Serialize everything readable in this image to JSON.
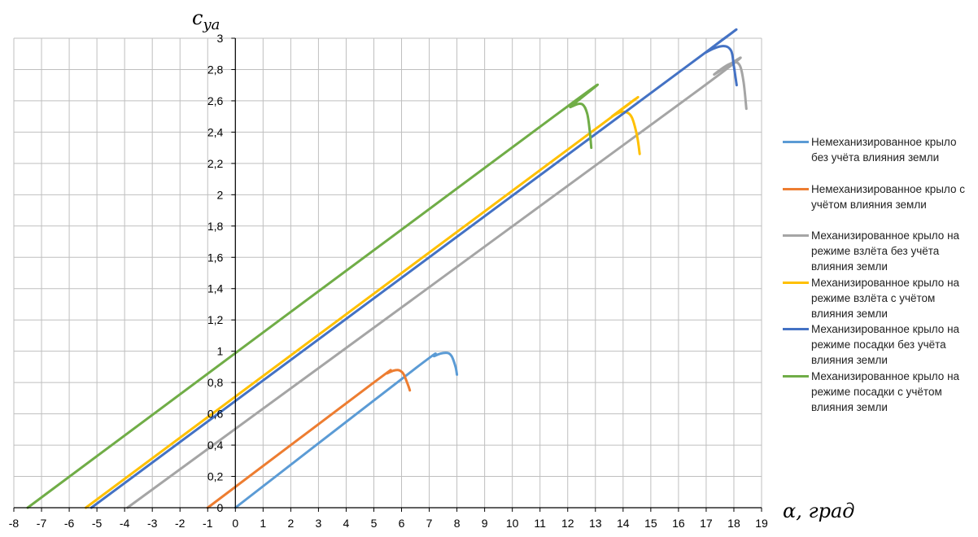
{
  "chart_data": {
    "type": "line",
    "xlabel": "α, град",
    "ylabel": "c_ya",
    "xlim": [
      -8,
      19
    ],
    "ylim": [
      0,
      3
    ],
    "x_ticks": [
      "-8",
      "-7",
      "-6",
      "-5",
      "-4",
      "-3",
      "-2",
      "-1",
      "0",
      "1",
      "2",
      "3",
      "4",
      "5",
      "6",
      "7",
      "8",
      "9",
      "10",
      "11",
      "12",
      "13",
      "14",
      "15",
      "16",
      "17",
      "18",
      "19"
    ],
    "y_ticks": [
      "0",
      "0,2",
      "0,4",
      "0,6",
      "0,8",
      "1",
      "1,2",
      "1,4",
      "1,6",
      "1,8",
      "2",
      "2,2",
      "2,4",
      "2,6",
      "2,8",
      "3"
    ],
    "grid": true,
    "legend_position": "right",
    "series": [
      {
        "name": "Немеханизированное крыло без учёта влияния земли",
        "color": "#5b9bd5",
        "points": [
          [
            0,
            0
          ],
          [
            6.5,
            0.89
          ],
          [
            7.2,
            0.97
          ],
          [
            7.6,
            0.99
          ],
          [
            7.8,
            0.97
          ],
          [
            7.95,
            0.9
          ],
          [
            8.0,
            0.85
          ]
        ]
      },
      {
        "name": "Немеханизированное крыло с учётом влияния земли",
        "color": "#ed7d31",
        "points": [
          [
            -1,
            0
          ],
          [
            5.0,
            0.8
          ],
          [
            5.5,
            0.86
          ],
          [
            5.85,
            0.88
          ],
          [
            6.05,
            0.86
          ],
          [
            6.2,
            0.8
          ],
          [
            6.3,
            0.75
          ]
        ]
      },
      {
        "name": "Механизированное крыло на режиме взлёта без учёта влияния земли",
        "color": "#a5a5a5",
        "points": [
          [
            -3.9,
            0
          ],
          [
            16.5,
            2.64
          ],
          [
            17.3,
            2.77
          ],
          [
            17.9,
            2.84
          ],
          [
            18.2,
            2.83
          ],
          [
            18.35,
            2.72
          ],
          [
            18.45,
            2.55
          ]
        ]
      },
      {
        "name": "Механизированное крыло на режиме взлёта с учётом влияния земли",
        "color": "#ffc000",
        "points": [
          [
            -5.4,
            0
          ],
          [
            13.0,
            2.42
          ],
          [
            13.6,
            2.5
          ],
          [
            14.0,
            2.53
          ],
          [
            14.3,
            2.5
          ],
          [
            14.5,
            2.38
          ],
          [
            14.6,
            2.26
          ]
        ]
      },
      {
        "name": "Механизированное крыло на режиме посадки без учёта влияния земли",
        "color": "#4472c4",
        "points": [
          [
            -5.2,
            0
          ],
          [
            16.3,
            2.82
          ],
          [
            17.0,
            2.91
          ],
          [
            17.6,
            2.95
          ],
          [
            17.9,
            2.92
          ],
          [
            18.0,
            2.82
          ],
          [
            18.1,
            2.7
          ]
        ]
      },
      {
        "name": "Механизированное крыло на режиме посадки с учётом влияния земли",
        "color": "#70ad47",
        "points": [
          [
            -7.5,
            0
          ],
          [
            11.5,
            2.5
          ],
          [
            12.1,
            2.56
          ],
          [
            12.5,
            2.58
          ],
          [
            12.7,
            2.52
          ],
          [
            12.8,
            2.4
          ],
          [
            12.85,
            2.3
          ]
        ]
      }
    ]
  }
}
